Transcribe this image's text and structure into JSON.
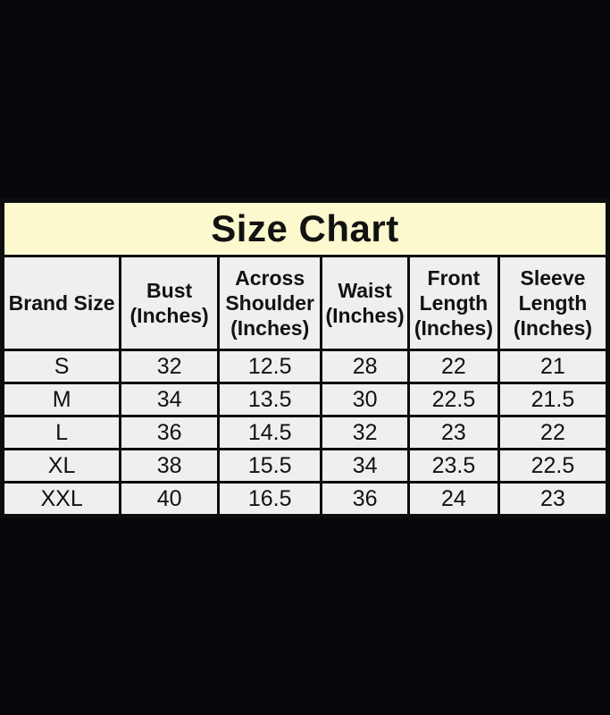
{
  "page": {
    "background_color": "#06060c",
    "table_border_color": "#0d0d0d",
    "title_background_color": "#fbf9cd",
    "cell_background_color": "#f0efef"
  },
  "table": {
    "title": "Size Chart",
    "columns": [
      {
        "name": "brand-size",
        "lines": [
          "Brand Size"
        ]
      },
      {
        "name": "bust",
        "lines": [
          "Bust",
          "(Inches)"
        ]
      },
      {
        "name": "across-shoulder",
        "lines": [
          "Across",
          "Shoulder",
          "(Inches)"
        ]
      },
      {
        "name": "waist",
        "lines": [
          "Waist",
          "(Inches)"
        ]
      },
      {
        "name": "front-length",
        "lines": [
          "Front",
          "Length",
          "(Inches)"
        ]
      },
      {
        "name": "sleeve-length",
        "lines": [
          "Sleeve",
          "Length",
          "(Inches)"
        ]
      }
    ],
    "rows": [
      [
        "S",
        "32",
        "12.5",
        "28",
        "22",
        "21"
      ],
      [
        "M",
        "34",
        "13.5",
        "30",
        "22.5",
        "21.5"
      ],
      [
        "L",
        "36",
        "14.5",
        "32",
        "23",
        "22"
      ],
      [
        "XL",
        "38",
        "15.5",
        "34",
        "23.5",
        "22.5"
      ],
      [
        "XXL",
        "40",
        "16.5",
        "36",
        "24",
        "23"
      ]
    ]
  },
  "chart_data": {
    "type": "table",
    "title": "Size Chart",
    "columns": [
      "Brand Size",
      "Bust (Inches)",
      "Across Shoulder (Inches)",
      "Waist (Inches)",
      "Front Length (Inches)",
      "Sleeve Length (Inches)"
    ],
    "rows": [
      [
        "S",
        32,
        12.5,
        28,
        22,
        21
      ],
      [
        "M",
        34,
        13.5,
        30,
        22.5,
        21.5
      ],
      [
        "L",
        36,
        14.5,
        32,
        23,
        22
      ],
      [
        "XL",
        38,
        15.5,
        34,
        23.5,
        22.5
      ],
      [
        "XXL",
        40,
        16.5,
        36,
        24,
        23
      ]
    ]
  }
}
